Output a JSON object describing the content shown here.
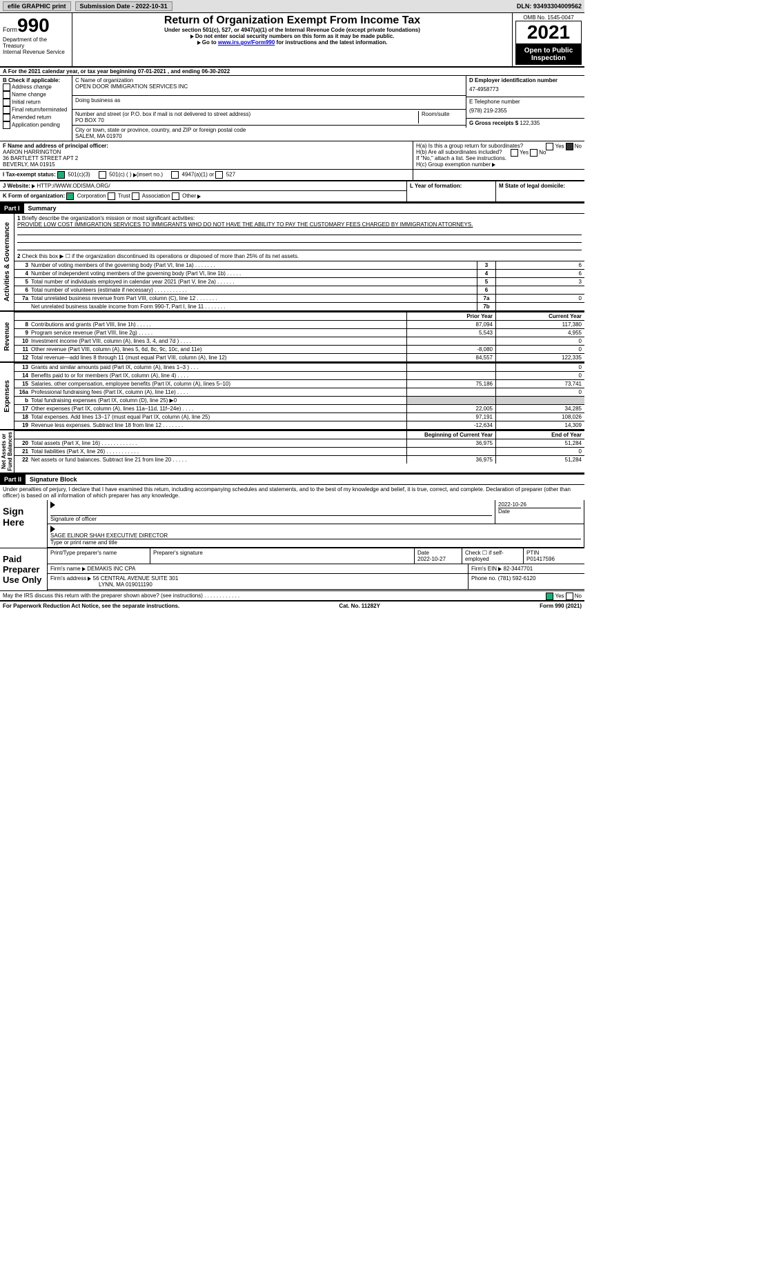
{
  "topbar": {
    "efile": "efile GRAPHIC print",
    "sub_lbl": "Submission Date - ",
    "sub_date": "2022-10-31",
    "dln_lbl": "DLN: ",
    "dln": "93493304009562"
  },
  "hdr": {
    "form_word": "Form",
    "form_no": "990",
    "title": "Return of Organization Exempt From Income Tax",
    "subtitle": "Under section 501(c), 527, or 4947(a)(1) of the Internal Revenue Code (except private foundations)",
    "note1": "Do not enter social security numbers on this form as it may be made public.",
    "note2_pre": "Go to ",
    "note2_link": "www.irs.gov/Form990",
    "note2_post": " for instructions and the latest information.",
    "dept": "Department of the Treasury\nInternal Revenue Service",
    "omb": "OMB No. 1545-0047",
    "year": "2021",
    "open": "Open to Public Inspection"
  },
  "rowA": {
    "text": "A For the 2021 calendar year, or tax year beginning ",
    "begin": "07-01-2021",
    "mid": " , and ending ",
    "end": "06-30-2022"
  },
  "cb": {
    "hdr": "B Check if applicable:",
    "items": [
      "Address change",
      "Name change",
      "Initial return",
      "Final return/terminated",
      "Amended return",
      "Application pending"
    ]
  },
  "c": {
    "name_lbl": "C Name of organization",
    "name": "OPEN DOOR IMMIGRATION SERVICES INC",
    "dba_lbl": "Doing business as",
    "addr_lbl": "Number and street (or P.O. box if mail is not delivered to street address)",
    "room_lbl": "Room/suite",
    "addr": "PO BOX 70",
    "city_lbl": "City or town, state or province, country, and ZIP or foreign postal code",
    "city": "SALEM, MA  01970"
  },
  "d": {
    "lbl": "D Employer identification number",
    "val": "47-4958773"
  },
  "e": {
    "lbl": "E Telephone number",
    "val": "(978) 219-2355"
  },
  "g": {
    "lbl": "G Gross receipts $ ",
    "val": "122,335"
  },
  "f": {
    "lbl": "F  Name and address of principal officer:",
    "name": "AARON HARRINGTON",
    "addr1": "36 BARTLETT STREET APT 2",
    "addr2": "BEVERLY, MA  01915"
  },
  "h": {
    "a": "H(a)  Is this a group return for subordinates?",
    "b": "H(b)  Are all subordinates included?",
    "bnote": "If \"No,\" attach a list. See instructions.",
    "c": "H(c)  Group exemption number ",
    "yes": "Yes",
    "no": "No"
  },
  "i": {
    "lbl": "I  Tax-exempt status:",
    "o1": "501(c)(3)",
    "o2": "501(c) (  ) ",
    "o2p": "(insert no.)",
    "o3": "4947(a)(1) or",
    "o4": "527"
  },
  "j": {
    "lbl": "J  Website: ",
    "url": "HTTP://WWW.ODISMA.ORG/"
  },
  "k": {
    "lbl": "K Form of organization:",
    "o1": "Corporation",
    "o2": "Trust",
    "o3": "Association",
    "o4": "Other"
  },
  "l": {
    "lbl": "L Year of formation:"
  },
  "m": {
    "lbl": "M State of legal domicile:"
  },
  "p1": {
    "hdr": "Part I",
    "title": "Summary",
    "l1_lbl": "Briefly describe the organization's mission or most significant activities:",
    "l1_txt": "PROVIDE LOW COST IMMIGRATION SERVICES TO IMMIGRANTS WHO DO NOT HAVE THE ABILITY TO PAY THE CUSTOMARY FEES CHARGED BY IMMIGRATION ATTORNEYS.",
    "l2": "Check this box ▶ ☐ if the organization discontinued its operations or disposed of more than 25% of its net assets.",
    "lines": [
      {
        "n": "3",
        "d": "Number of voting members of the governing body (Part VI, line 1a)  .    .    .    .    .    .    .",
        "b": "3",
        "v": "6"
      },
      {
        "n": "4",
        "d": "Number of independent voting members of the governing body (Part VI, line 1b)  .    .    .    .    .",
        "b": "4",
        "v": "6"
      },
      {
        "n": "5",
        "d": "Total number of individuals employed in calendar year 2021 (Part V, line 2a)  .    .    .    .    .    .",
        "b": "5",
        "v": "3"
      },
      {
        "n": "6",
        "d": "Total number of volunteers (estimate if necessary)    .    .    .    .    .    .    .    .    .    .    .",
        "b": "6",
        "v": ""
      },
      {
        "n": "7a",
        "d": "Total unrelated business revenue from Part VIII, column (C), line 12    .    .    .    .    .    .    .",
        "b": "7a",
        "v": "0"
      },
      {
        "n": "",
        "d": "Net unrelated business taxable income from Form 990-T, Part I, line 11  .    .    .    .    .    .    .",
        "b": "7b",
        "v": ""
      }
    ],
    "vlabels": {
      "ag": "Activities & Governance",
      "rev": "Revenue",
      "exp": "Expenses",
      "na": "Net Assets or\nFund Balances"
    },
    "cols": {
      "prior": "Prior Year",
      "curr": "Current Year",
      "boy": "Beginning of Current Year",
      "eoy": "End of Year"
    },
    "rev": [
      {
        "n": "8",
        "d": "Contributions and grants (Part VIII, line 1h)    .    .    .    .    .",
        "p": "87,094",
        "c": "117,380"
      },
      {
        "n": "9",
        "d": "Program service revenue (Part VIII, line 2g)    .    .    .    .    .",
        "p": "5,543",
        "c": "4,955"
      },
      {
        "n": "10",
        "d": "Investment income (Part VIII, column (A), lines 3, 4, and 7d )    .    .    .    .",
        "p": "",
        "c": "0"
      },
      {
        "n": "11",
        "d": "Other revenue (Part VIII, column (A), lines 5, 6d, 8c, 9c, 10c, and 11e)",
        "p": "-8,080",
        "c": "0"
      },
      {
        "n": "12",
        "d": "Total revenue—add lines 8 through 11 (must equal Part VIII, column (A), line 12)",
        "p": "84,557",
        "c": "122,335"
      }
    ],
    "exp": [
      {
        "n": "13",
        "d": "Grants and similar amounts paid (Part IX, column (A), lines 1–3 )    .    .    .",
        "p": "",
        "c": "0"
      },
      {
        "n": "14",
        "d": "Benefits paid to or for members (Part IX, column (A), line 4)    .    .    .    .",
        "p": "",
        "c": "0"
      },
      {
        "n": "15",
        "d": "Salaries, other compensation, employee benefits (Part IX, column (A), lines 5–10)",
        "p": "75,186",
        "c": "73,741"
      },
      {
        "n": "16a",
        "d": "Professional fundraising fees (Part IX, column (A), line 11e)    .    .    .    .",
        "p": "",
        "c": "0"
      },
      {
        "n": "b",
        "d": "Total fundraising expenses (Part IX, column (D), line 25) ▶0",
        "p": "",
        "c": "",
        "shade": true,
        "noborder": true
      },
      {
        "n": "17",
        "d": "Other expenses (Part IX, column (A), lines 11a–11d, 11f–24e)    .    .    .    .",
        "p": "22,005",
        "c": "34,285"
      },
      {
        "n": "18",
        "d": "Total expenses. Add lines 13–17 (must equal Part IX, column (A), line 25)",
        "p": "97,191",
        "c": "108,026"
      },
      {
        "n": "19",
        "d": "Revenue less expenses. Subtract line 18 from line 12  .    .    .    .    .    .    .",
        "p": "-12,634",
        "c": "14,309"
      }
    ],
    "na": [
      {
        "n": "20",
        "d": "Total assets (Part X, line 16)  .    .    .    .    .    .    .    .    .    .    .    .",
        "p": "36,975",
        "c": "51,284"
      },
      {
        "n": "21",
        "d": "Total liabilities (Part X, line 26)  .    .    .    .    .    .    .    .    .    .    .",
        "p": "",
        "c": "0"
      },
      {
        "n": "22",
        "d": "Net assets or fund balances. Subtract line 21 from line 20  .    .    .    .    .",
        "p": "36,975",
        "c": "51,284"
      }
    ]
  },
  "p2": {
    "hdr": "Part II",
    "title": "Signature Block",
    "pen": "Under penalties of perjury, I declare that I have examined this return, including accompanying schedules and statements, and to the best of my knowledge and belief, it is true, correct, and complete. Declaration of preparer (other than officer) is based on all information of which preparer has any knowledge.",
    "sign_here": "Sign Here",
    "sig_lbl": "Signature of officer",
    "date_lbl": "Date",
    "date": "2022-10-26",
    "name": "SAGE ELINOR SHAH  EXECUTIVE DIRECTOR",
    "name_lbl": "Type or print name and title",
    "paid": "Paid Preparer Use Only",
    "pp_name_lbl": "Print/Type preparer's name",
    "pp_sig_lbl": "Preparer's signature",
    "pp_date_lbl": "Date",
    "pp_date": "2022-10-27",
    "pp_self": "Check ☐ if self-employed",
    "ptin_lbl": "PTIN",
    "ptin": "P01417596",
    "firm_lbl": "Firm's name   ",
    "firm": "DEMAKIS INC CPA",
    "firm_ein_lbl": "Firm's EIN ",
    "firm_ein": "82-3447701",
    "firm_addr_lbl": "Firm's address ",
    "firm_addr1": "56 CENTRAL AVENUE SUITE 301",
    "firm_addr2": "LYNN, MA  019011190",
    "phone_lbl": "Phone no. ",
    "phone": "(781) 592-6120",
    "discuss": "May the IRS discuss this return with the preparer shown above? (see instructions)  .    .    .    .    .    .    .    .    .    .    .    .",
    "yes": "Yes",
    "no": "No"
  },
  "foot": {
    "pra": "For Paperwork Reduction Act Notice, see the separate instructions.",
    "cat": "Cat. No. 11282Y",
    "ver": "Form 990 (2021)"
  }
}
